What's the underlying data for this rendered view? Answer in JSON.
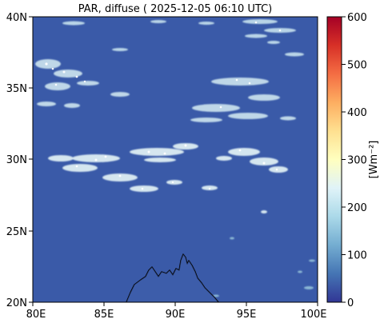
{
  "title": "PAR, diffuse ( 2025-12-05 06:10 UTC)",
  "map": {
    "x_ticks": [
      "80E",
      "85E",
      "90E",
      "95E",
      "100E"
    ],
    "y_ticks": [
      "40N",
      "35N",
      "30N",
      "25N",
      "20N"
    ],
    "lon_range": [
      80,
      100
    ],
    "lat_range": [
      20,
      40
    ],
    "background_color": "#3a5aa8",
    "coastline_color": "#000000"
  },
  "colorbar": {
    "label": "[Wm⁻²]",
    "ticks": [
      "0",
      "100",
      "200",
      "300",
      "400",
      "500",
      "600"
    ],
    "range": [
      0,
      600
    ],
    "colormap": "RdYlBu_r",
    "stops": [
      "#313695",
      "#4575b4",
      "#74add1",
      "#abd9e9",
      "#e0f3f8",
      "#ffffbf",
      "#fee090",
      "#fdae61",
      "#f46d43",
      "#d73027",
      "#a50026"
    ]
  }
}
